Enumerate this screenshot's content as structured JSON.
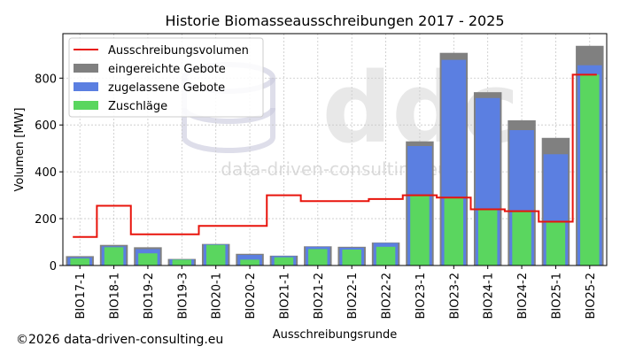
{
  "chart_data": {
    "type": "bar",
    "title": "Historie Biomasseausschreibungen 2017 - 2025",
    "xlabel": "Ausschreibungsrunde",
    "ylabel": "Volumen [MW]",
    "ylim": [
      0,
      990
    ],
    "yticks": [
      0,
      200,
      400,
      600,
      800
    ],
    "grid": true,
    "legend_position": "top-left",
    "categories": [
      "BIO17-1",
      "BIO18-1",
      "BIO19-2",
      "BIO19-3",
      "BIO20-1",
      "BIO20-2",
      "BIO21-1",
      "BIO21-2",
      "BIO22-1",
      "BIO22-2",
      "BIO23-1",
      "BIO23-2",
      "BIO24-1",
      "BIO24-2",
      "BIO25-1",
      "BIO25-2"
    ],
    "series": [
      {
        "name": "Ausschreibungsvolumen",
        "kind": "step-line",
        "color": "#e8140c",
        "values": [
          122,
          255,
          133,
          133,
          169,
          169,
          300,
          275,
          275,
          284,
          300,
          290,
          240,
          232,
          187,
          815
        ]
      },
      {
        "name": "eingereichte Gebote",
        "kind": "bar",
        "color": "#808080",
        "values": [
          40,
          88,
          78,
          28,
          92,
          50,
          42,
          82,
          80,
          98,
          530,
          908,
          740,
          620,
          545,
          938
        ]
      },
      {
        "name": "zugelassene Gebote",
        "kind": "bar",
        "color": "#5b7fe1",
        "values": [
          35,
          82,
          70,
          26,
          90,
          45,
          40,
          80,
          76,
          96,
          510,
          878,
          715,
          578,
          475,
          855
        ]
      },
      {
        "name": "Zuschläge",
        "kind": "bar",
        "color": "#5ad65f",
        "values": [
          30,
          78,
          52,
          25,
          88,
          25,
          35,
          70,
          68,
          80,
          300,
          290,
          240,
          232,
          187,
          815
        ]
      }
    ]
  },
  "footer": {
    "copyright": "©2026 data-driven-consulting.eu"
  },
  "watermark": {
    "text": "data-driven-consulting.eu"
  }
}
